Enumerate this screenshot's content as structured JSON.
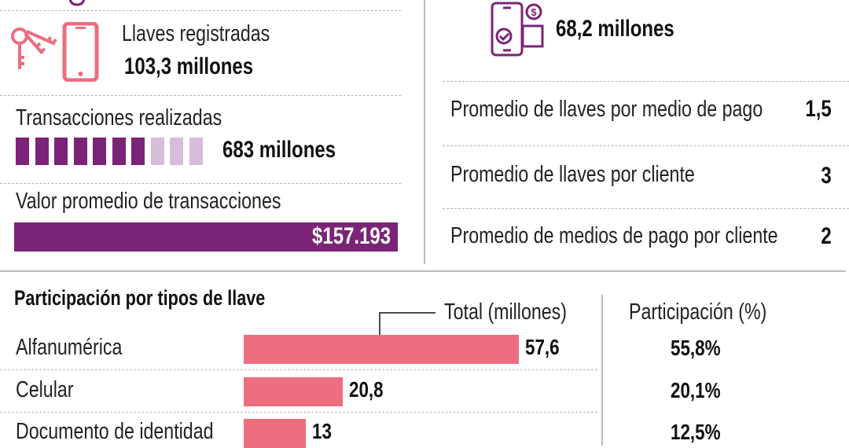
{
  "colors": {
    "purple": "#7b2377",
    "light_purple": "#d8bcdc",
    "pink": "#ec6e7f"
  },
  "llaves": {
    "label": "Llaves registradas",
    "value": "103,3 millones",
    "icon": "keys-phone-icon"
  },
  "transacciones": {
    "label": "Transacciones realizadas",
    "value": "683 millones",
    "filled_blocks": 7,
    "total_blocks": 10
  },
  "valor_promedio": {
    "label": "Valor promedio de transacciones",
    "value": "$157.193"
  },
  "clientes": {
    "value": "68,2 millones",
    "icon": "mobile-payment-icon"
  },
  "promedios": [
    {
      "label": "Promedio de llaves por medio de pago",
      "value": "1,5"
    },
    {
      "label": "Promedio de llaves por cliente",
      "value": "3"
    },
    {
      "label": "Promedio de medios de pago por cliente",
      "value": "2"
    }
  ],
  "chart_data": {
    "type": "bar",
    "title": "Participación por tipos de llave",
    "value_header": "Total (millones)",
    "share_header": "Participación (%)",
    "categories": [
      "Alfanumérica",
      "Celular",
      "Documento de identidad"
    ],
    "values": [
      57.6,
      20.8,
      13
    ],
    "value_labels": [
      "57,6",
      "20,8",
      "13"
    ],
    "shares": [
      "55,8%",
      "20,1%",
      "12,5%"
    ]
  }
}
